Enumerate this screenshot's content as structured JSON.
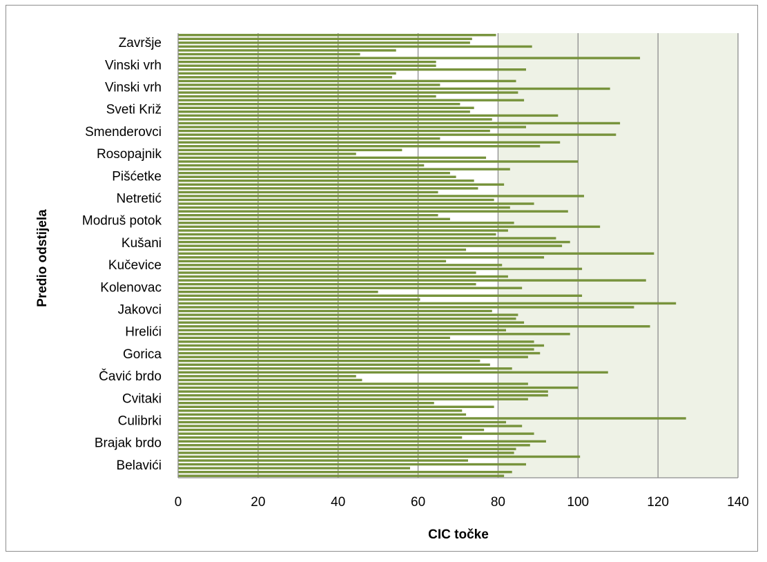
{
  "chart_data": {
    "type": "bar",
    "orientation": "horizontal",
    "xlabel": "CIC točke",
    "ylabel": "Predio odstijela",
    "xlim": [
      0,
      140
    ],
    "xticks": [
      0,
      20,
      40,
      60,
      80,
      100,
      120,
      140
    ],
    "grid": "vertical",
    "legend": "none",
    "category_labels": [
      "Belavići",
      "Brajak brdo",
      "Culibrki",
      "Cvitaki",
      "Čavić brdo",
      "Gorica",
      "Hrelići",
      "Jakovci",
      "Kolenovac",
      "Kučevice",
      "Kušani",
      "Modruš potok",
      "Netretić",
      "Pišćetke",
      "Rosopajnik",
      "Smenderovci",
      "Sveti Križ",
      "Vinski vrh",
      "Vinski vrh",
      "Završje"
    ],
    "values": [
      81.5,
      83.5,
      58,
      87,
      72.5,
      100.5,
      84,
      84.5,
      88,
      92,
      71,
      89,
      76.5,
      86,
      82,
      127,
      72,
      71,
      79,
      64,
      87.5,
      92.5,
      92.5,
      100,
      87.5,
      46,
      44.5,
      107.5,
      83.5,
      78,
      75.5,
      87.5,
      90.5,
      89,
      91.5,
      89,
      68,
      98,
      82,
      118,
      86.5,
      84.5,
      85,
      78.5,
      114,
      124.5,
      60.5,
      101,
      50,
      86,
      74.5,
      117,
      82.5,
      74.5,
      101,
      81,
      67,
      91.5,
      119,
      72,
      96,
      98,
      94.5,
      79.5,
      82.5,
      105.5,
      84,
      68,
      65,
      97.5,
      83,
      89,
      79,
      101.5,
      65,
      75,
      81.5,
      74,
      69.5,
      68,
      83,
      61.5,
      100,
      77,
      44.5,
      56,
      90.5,
      95.5,
      65.5,
      109.5,
      78,
      87,
      110.5,
      78.5,
      95,
      73,
      74,
      70.5,
      86.5,
      64.5,
      85,
      108,
      65.5,
      84.5,
      53.5,
      54.5,
      87,
      64.5,
      64.5,
      115.5,
      45.5,
      54.5,
      88.5,
      73,
      73.5,
      79.5
    ],
    "bar_color": "#77933c"
  }
}
